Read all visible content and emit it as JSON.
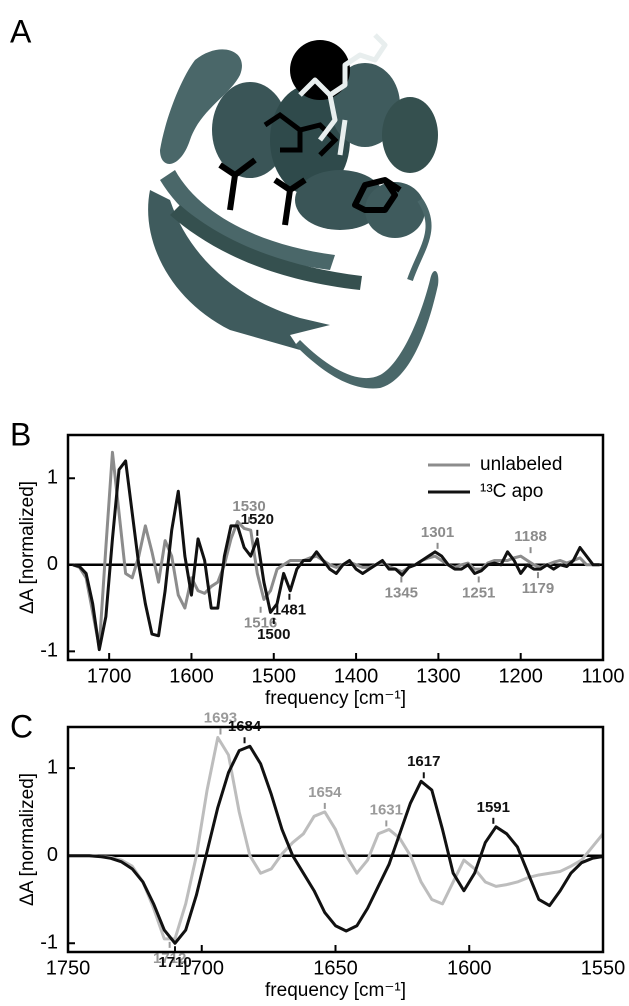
{
  "panel_a": {
    "label": "A"
  },
  "chart_data": [
    {
      "type": "line",
      "panel_label": "B",
      "xlabel": "frequency [cm⁻¹]",
      "ylabel": "ΔA [normalized]",
      "xlim": [
        1750,
        1100
      ],
      "ylim": [
        -1.1,
        1.5
      ],
      "xticks": [
        1700,
        1600,
        1500,
        1400,
        1300,
        1200,
        1100
      ],
      "yticks": [
        -1,
        0,
        1
      ],
      "baseline": 0,
      "legend": "upper right",
      "x": [
        1744,
        1736,
        1728,
        1720,
        1712,
        1704,
        1696,
        1688,
        1680,
        1672,
        1664,
        1656,
        1648,
        1640,
        1632,
        1624,
        1616,
        1608,
        1600,
        1592,
        1584,
        1576,
        1568,
        1560,
        1552,
        1544,
        1536,
        1528,
        1520,
        1512,
        1504,
        1496,
        1488,
        1480,
        1472,
        1464,
        1456,
        1448,
        1440,
        1432,
        1424,
        1416,
        1408,
        1400,
        1392,
        1384,
        1376,
        1368,
        1360,
        1352,
        1344,
        1336,
        1328,
        1320,
        1312,
        1304,
        1296,
        1288,
        1280,
        1272,
        1264,
        1256,
        1248,
        1240,
        1232,
        1224,
        1216,
        1208,
        1200,
        1192,
        1184,
        1176,
        1168,
        1160,
        1152,
        1144,
        1136,
        1128,
        1120,
        1112,
        1104
      ],
      "series": [
        {
          "name": "unlabeled",
          "color": "#8c8c8c",
          "values": [
            0,
            -0.03,
            -0.15,
            -0.55,
            -0.95,
            0.2,
            1.3,
            0.6,
            -0.1,
            -0.15,
            0.1,
            0.45,
            0.15,
            -0.2,
            0.28,
            0.1,
            -0.35,
            -0.5,
            -0.15,
            -0.3,
            -0.33,
            -0.25,
            -0.2,
            0.0,
            0.3,
            0.5,
            0.42,
            0.4,
            -0.1,
            -0.4,
            -0.3,
            -0.05,
            0.0,
            0.05,
            0.05,
            0.05,
            0.08,
            0.1,
            0.05,
            0.0,
            -0.03,
            0.0,
            0.03,
            0.0,
            -0.03,
            -0.03,
            0.0,
            0.02,
            -0.02,
            -0.05,
            -0.08,
            -0.03,
            0.0,
            0.05,
            0.08,
            0.1,
            0.05,
            0.0,
            -0.03,
            0.0,
            0.02,
            -0.05,
            -0.05,
            0.02,
            0.05,
            0.05,
            0.05,
            0.08,
            0.1,
            0.05,
            0.0,
            -0.03,
            0.0,
            0.03,
            0.05,
            0.02,
            0.05,
            0.08,
            0.0,
            0.0,
            0.0
          ]
        },
        {
          "name": "¹³C apo",
          "color": "#111111",
          "values": [
            0,
            -0.02,
            -0.1,
            -0.45,
            -0.98,
            -0.6,
            0.3,
            1.1,
            1.2,
            0.6,
            0.0,
            -0.45,
            -0.8,
            -0.82,
            -0.3,
            0.4,
            0.85,
            0.1,
            -0.35,
            0.3,
            0.05,
            -0.5,
            -0.5,
            0.1,
            0.45,
            0.45,
            0.2,
            0.1,
            0.3,
            -0.2,
            -0.55,
            -0.45,
            -0.1,
            -0.3,
            -0.05,
            0.05,
            0.05,
            0.15,
            0.05,
            -0.05,
            -0.1,
            0.0,
            0.05,
            -0.05,
            -0.1,
            -0.05,
            0.0,
            0.05,
            -0.05,
            -0.05,
            -0.12,
            -0.03,
            0.0,
            0.05,
            0.1,
            0.15,
            0.1,
            0.0,
            -0.05,
            -0.05,
            0.0,
            -0.1,
            -0.07,
            0.0,
            0.02,
            0.0,
            0.15,
            0.05,
            -0.1,
            0.0,
            -0.05,
            -0.05,
            0.0,
            -0.05,
            0.0,
            -0.02,
            0.05,
            0.2,
            0.1,
            0.0,
            0.0
          ]
        }
      ],
      "annotations": [
        {
          "x": 1530,
          "y": 0.45,
          "color": "#8c8c8c"
        },
        {
          "x": 1520,
          "y": 0.3,
          "color": "#111111"
        },
        {
          "x": 1516,
          "y": -0.45,
          "color": "#8c8c8c"
        },
        {
          "x": 1500,
          "y": -0.58,
          "color": "#111111"
        },
        {
          "x": 1481,
          "y": -0.3,
          "color": "#111111"
        },
        {
          "x": 1345,
          "y": -0.1,
          "color": "#8c8c8c"
        },
        {
          "x": 1301,
          "y": 0.15,
          "color": "#8c8c8c"
        },
        {
          "x": 1251,
          "y": -0.1,
          "color": "#8c8c8c"
        },
        {
          "x": 1188,
          "y": 0.1,
          "color": "#8c8c8c"
        },
        {
          "x": 1179,
          "y": -0.05,
          "color": "#8c8c8c"
        }
      ]
    },
    {
      "type": "line",
      "panel_label": "C",
      "xlabel": "frequency [cm⁻¹]",
      "ylabel": "ΔA [normalized]",
      "xlim": [
        1750,
        1550
      ],
      "ylim": [
        -1.1,
        1.47
      ],
      "xticks": [
        1750,
        1700,
        1650,
        1600,
        1550
      ],
      "yticks": [
        -1,
        0,
        1
      ],
      "baseline": 0,
      "x": [
        1750,
        1746,
        1742,
        1738,
        1734,
        1730,
        1726,
        1722,
        1718,
        1714,
        1710,
        1706,
        1702,
        1698,
        1694,
        1690,
        1686,
        1682,
        1678,
        1674,
        1670,
        1666,
        1662,
        1658,
        1654,
        1650,
        1646,
        1642,
        1638,
        1634,
        1630,
        1626,
        1622,
        1618,
        1614,
        1610,
        1606,
        1602,
        1598,
        1594,
        1590,
        1586,
        1582,
        1578,
        1574,
        1570,
        1566,
        1562,
        1558,
        1554,
        1550
      ],
      "series": [
        {
          "color": "#bdbdbd",
          "values": [
            0,
            0,
            0,
            -0.01,
            -0.02,
            -0.05,
            -0.12,
            -0.3,
            -0.6,
            -0.95,
            -0.95,
            -0.55,
            0.0,
            0.75,
            1.35,
            1.15,
            0.5,
            0.0,
            -0.2,
            -0.15,
            0.02,
            0.15,
            0.25,
            0.45,
            0.5,
            0.3,
            0.0,
            -0.2,
            -0.05,
            0.25,
            0.3,
            0.2,
            0.0,
            -0.3,
            -0.5,
            -0.55,
            -0.3,
            -0.05,
            -0.15,
            -0.3,
            -0.35,
            -0.33,
            -0.3,
            -0.25,
            -0.22,
            -0.2,
            -0.18,
            -0.12,
            -0.05,
            0.1,
            0.25
          ]
        },
        {
          "color": "#111111",
          "values": [
            0,
            0,
            0,
            -0.01,
            -0.03,
            -0.07,
            -0.15,
            -0.3,
            -0.55,
            -0.85,
            -1.0,
            -0.85,
            -0.45,
            0.05,
            0.55,
            0.95,
            1.2,
            1.25,
            1.05,
            0.7,
            0.3,
            0.0,
            -0.2,
            -0.4,
            -0.65,
            -0.8,
            -0.86,
            -0.8,
            -0.6,
            -0.35,
            -0.1,
            0.25,
            0.6,
            0.85,
            0.75,
            0.3,
            -0.2,
            -0.4,
            -0.2,
            0.15,
            0.33,
            0.25,
            0.1,
            -0.2,
            -0.5,
            -0.57,
            -0.4,
            -0.2,
            -0.08,
            -0.03,
            -0.01
          ]
        }
      ],
      "annotations": [
        {
          "x": 1693,
          "y": 1.35,
          "color": "#9a9a9a"
        },
        {
          "x": 1684,
          "y": 1.25,
          "color": "#111111"
        },
        {
          "x": 1654,
          "y": 0.5,
          "color": "#9a9a9a"
        },
        {
          "x": 1631,
          "y": 0.3,
          "color": "#9a9a9a"
        },
        {
          "x": 1617,
          "y": 0.85,
          "color": "#111111"
        },
        {
          "x": 1591,
          "y": 0.33,
          "color": "#111111"
        },
        {
          "x": 1712,
          "y": -0.95,
          "color": "#9a9a9a"
        },
        {
          "x": 1710,
          "y": -1.0,
          "color": "#111111"
        }
      ]
    }
  ]
}
